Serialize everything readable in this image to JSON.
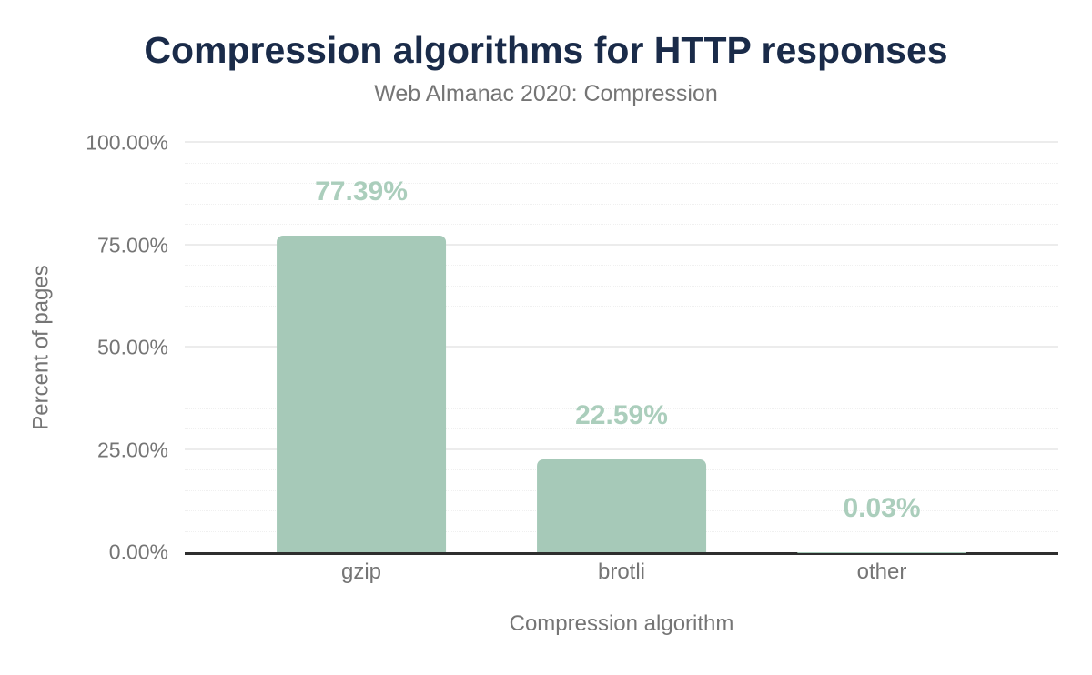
{
  "chart_data": {
    "type": "bar",
    "title": "Compression algorithms for HTTP responses",
    "subtitle": "Web Almanac 2020: Compression",
    "xlabel": "Compression algorithm",
    "ylabel": "Percent of pages",
    "categories": [
      "gzip",
      "brotli",
      "other"
    ],
    "values": [
      77.39,
      22.59,
      0.03
    ],
    "value_labels": [
      "77.39%",
      "22.59%",
      "0.03%"
    ],
    "ylim": [
      0,
      100
    ],
    "y_ticks": [
      {
        "label": "0.00%",
        "value": 0
      },
      {
        "label": "25.00%",
        "value": 25
      },
      {
        "label": "50.00%",
        "value": 50
      },
      {
        "label": "75.00%",
        "value": 75
      },
      {
        "label": "100.00%",
        "value": 100
      }
    ],
    "grid": {
      "major_interval": 25,
      "minor_interval": 5,
      "grid_on": true
    },
    "legend": "none",
    "colors": {
      "bar": "#a6c9b8",
      "value_label": "#abcebc",
      "title": "#1a2b49",
      "axis_text": "#757575",
      "axis_line": "#2e2e2e",
      "gridline_major": "#ececec",
      "gridline_minor": "#f0f0f0",
      "background": "#ffffff"
    }
  }
}
